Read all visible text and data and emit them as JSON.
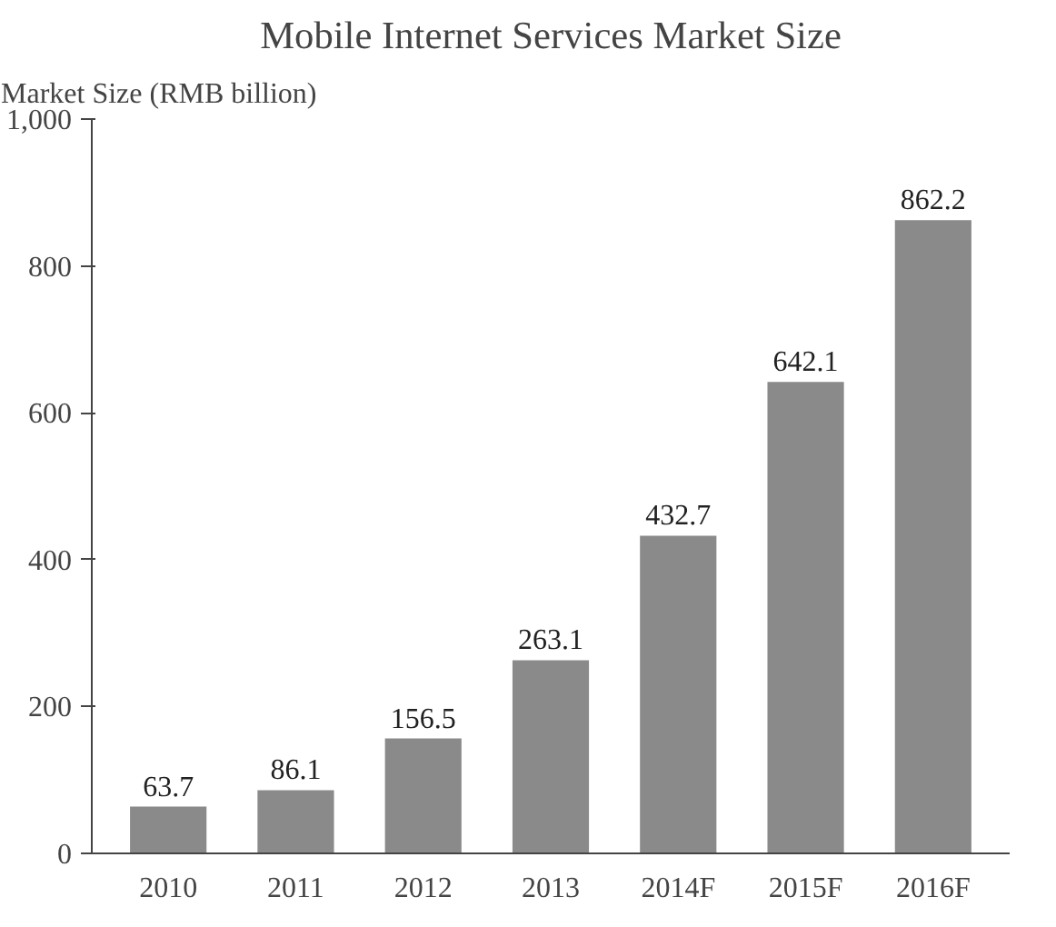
{
  "chart_data": {
    "type": "bar",
    "title": "Mobile Internet Services Market Size",
    "ylabel": "Market Size (RMB billion)",
    "categories": [
      "2010",
      "2011",
      "2012",
      "2013",
      "2014F",
      "2015F",
      "2016F"
    ],
    "values": [
      63.7,
      86.1,
      156.5,
      263.1,
      432.7,
      642.1,
      862.2
    ],
    "color": "#8a8a8a",
    "ylim": [
      0,
      1000
    ],
    "yticks": [
      0,
      200,
      400,
      600,
      800,
      {
        "value": 1000,
        "label": "1,000"
      }
    ],
    "data_labels": true
  }
}
